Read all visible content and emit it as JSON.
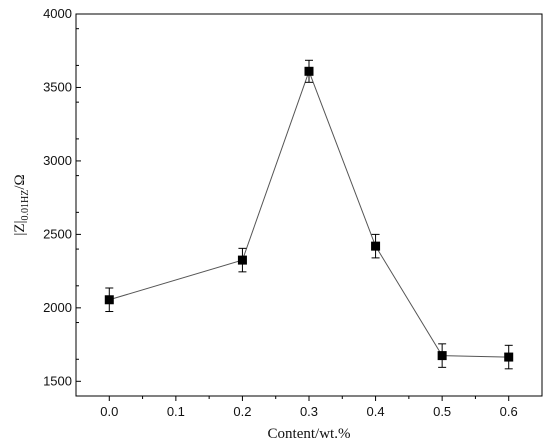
{
  "chart_data": {
    "type": "line",
    "title": "",
    "xlabel": "Content/wt.%",
    "ylabel": {
      "main": "|Z|",
      "subscript": "0.01HZ",
      "unit": "/Ω"
    },
    "xlim": [
      -0.05,
      0.65
    ],
    "ylim": [
      1400,
      4000
    ],
    "x_ticks": [
      0.0,
      0.1,
      0.2,
      0.3,
      0.4,
      0.5,
      0.6
    ],
    "x_tick_labels": [
      "0.0",
      "0.1",
      "0.2",
      "0.3",
      "0.4",
      "0.5",
      "0.6"
    ],
    "y_ticks": [
      1500,
      2000,
      2500,
      3000,
      3500,
      4000
    ],
    "y_tick_labels": [
      "1500",
      "2000",
      "2500",
      "3000",
      "3500",
      "4000"
    ],
    "grid": false,
    "legend": "none",
    "marker": "square",
    "line_color": "#555555",
    "marker_color": "#000000",
    "series": [
      {
        "x": [
          0.0,
          0.2,
          0.3,
          0.4,
          0.5,
          0.6
        ],
        "y": [
          2055,
          2325,
          3610,
          2420,
          1675,
          1665
        ],
        "error": [
          80,
          80,
          75,
          80,
          80,
          80
        ]
      }
    ]
  }
}
